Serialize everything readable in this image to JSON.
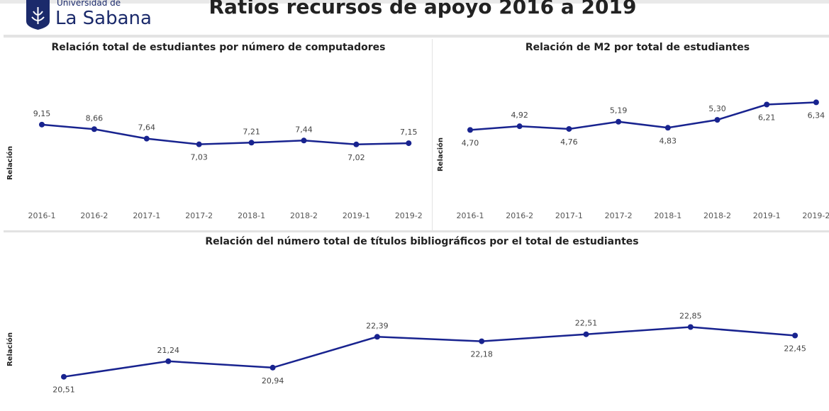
{
  "header": {
    "logo_small": "Universidad de",
    "logo": "La Sabana",
    "title": "Ratios recursos de apoyo 2016 a 2019"
  },
  "chart_data": [
    {
      "type": "line",
      "title": "Relación total de estudiantes por número de computadores",
      "y_label": "Relación",
      "categories": [
        "2016-1",
        "2016-2",
        "2017-1",
        "2017-2",
        "2018-1",
        "2018-2",
        "2019-1",
        "2019-2"
      ],
      "values": [
        9.15,
        8.66,
        7.64,
        7.03,
        7.21,
        7.44,
        7.02,
        7.15
      ],
      "value_labels": [
        "9,15",
        "8,66",
        "7,64",
        "7,03",
        "7,21",
        "7,44",
        "7,02",
        "7,15"
      ],
      "color": "#18238f",
      "ylim": [
        0,
        15
      ]
    },
    {
      "type": "line",
      "title": "Relación de M2 por total de estudiantes",
      "y_label": "Relación",
      "categories": [
        "2016-1",
        "2016-2",
        "2017-1",
        "2017-2",
        "2018-1",
        "2018-2",
        "2019-1",
        "2019-2"
      ],
      "values": [
        4.7,
        4.92,
        4.76,
        5.19,
        4.83,
        5.3,
        6.21,
        6.34
      ],
      "value_labels": [
        "4,70",
        "4,92",
        "4,76",
        "5,19",
        "4,83",
        "5,30",
        "6,21",
        "6,34"
      ],
      "color": "#18238f",
      "ylim": [
        0,
        8
      ]
    },
    {
      "type": "line",
      "title": "Relación del número total de títulos bibliográficos por el total de estudiantes",
      "y_label": "Relación",
      "values": [
        20.51,
        21.24,
        20.94,
        22.39,
        22.18,
        22.51,
        22.85,
        22.45
      ],
      "value_labels": [
        "20,51",
        "21,24",
        "20,94",
        "22,39",
        "22,18",
        "22,51",
        "22,85",
        "22,45"
      ],
      "color": "#18238f",
      "ylim": [
        19.5,
        23.5
      ]
    }
  ]
}
